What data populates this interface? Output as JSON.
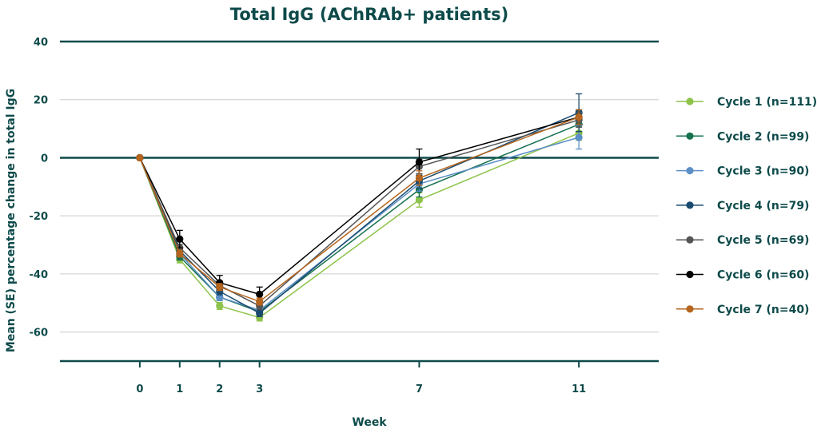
{
  "chart_data": {
    "type": "line",
    "title": "Total IgG (AChRAb+ patients)",
    "xlabel": "Week",
    "ylabel": "Mean (SE) percentage change in total IgG",
    "x": [
      0,
      1,
      2,
      3,
      7,
      11
    ],
    "xlim": [
      -2,
      13
    ],
    "ylim": [
      -70,
      40
    ],
    "yticks": [
      40,
      20,
      0,
      -20,
      -40,
      -60
    ],
    "grid": true,
    "legend_position": "right",
    "series": [
      {
        "name": "Cycle 1 (n=111)",
        "color": "#8dc34a",
        "values": [
          0,
          -35,
          -51,
          -55,
          -14.5,
          8.5
        ],
        "error": [
          0,
          1.2,
          1.2,
          1.2,
          2.5,
          2.5
        ]
      },
      {
        "name": "Cycle 2 (n=99)",
        "color": "#16714f",
        "values": [
          0,
          -34,
          -48,
          -53,
          -11,
          11.5
        ],
        "error": [
          0,
          1.2,
          1.2,
          1.2,
          2.5,
          2.5
        ]
      },
      {
        "name": "Cycle 3 (n=90)",
        "color": "#5b8fc6",
        "values": [
          0,
          -33,
          -48,
          -52.5,
          -9,
          7
        ],
        "error": [
          0,
          1.2,
          1.2,
          1.2,
          2.5,
          4
        ]
      },
      {
        "name": "Cycle 4 (n=79)",
        "color": "#1a4a6e",
        "values": [
          0,
          -32,
          -46,
          -53.5,
          -8,
          15.5
        ],
        "error": [
          0,
          1.2,
          1.2,
          1.2,
          2.5,
          6.5
        ]
      },
      {
        "name": "Cycle 5 (n=69)",
        "color": "#555555",
        "values": [
          0,
          -31,
          -44,
          -51,
          -3,
          13
        ],
        "error": [
          0,
          1.2,
          1.2,
          1.2,
          2.5,
          2.5
        ]
      },
      {
        "name": "Cycle 6 (n=60)",
        "color": "#000000",
        "values": [
          0,
          -28,
          -43,
          -47,
          -1.5,
          14
        ],
        "error": [
          0,
          3,
          2.5,
          2.5,
          4.5,
          2.5
        ]
      },
      {
        "name": "Cycle 7 (n=40)",
        "color": "#b5651d",
        "values": [
          0,
          -33,
          -44.5,
          -49.5,
          -7,
          14
        ],
        "error": [
          0,
          1.2,
          1.2,
          1.2,
          2.5,
          2.5
        ]
      }
    ]
  }
}
